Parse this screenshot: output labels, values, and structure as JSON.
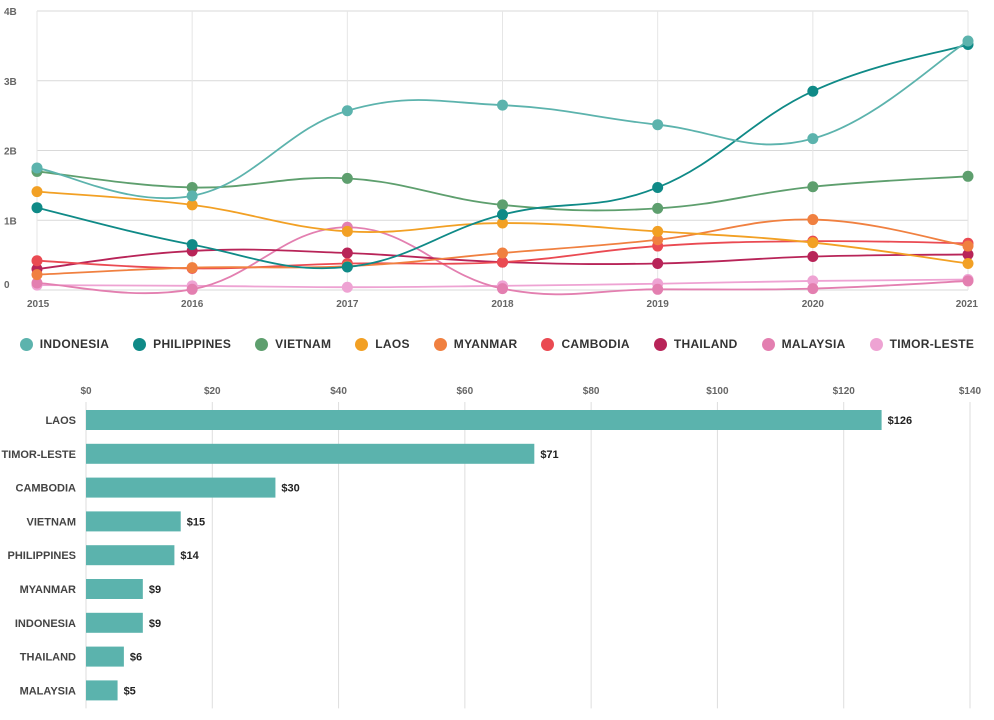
{
  "chart_data": [
    {
      "type": "line",
      "title": "",
      "xlabel": "",
      "ylabel": "",
      "x": [
        "2015",
        "2016",
        "2017",
        "2018",
        "2019",
        "2020",
        "2021"
      ],
      "ylim": [
        0,
        4
      ],
      "yticks": [
        0,
        1,
        2,
        3,
        4
      ],
      "ytick_labels": [
        "0",
        "1B",
        "2B",
        "3B",
        "4B"
      ],
      "grid": true,
      "legend_position": "bottom",
      "series": [
        {
          "name": "INDONESIA",
          "color": "#5cb3ad",
          "values": [
            1.75,
            1.35,
            2.57,
            2.65,
            2.37,
            2.17,
            3.57
          ]
        },
        {
          "name": "PHILIPPINES",
          "color": "#0f8a87",
          "values": [
            1.18,
            0.65,
            0.33,
            1.08,
            1.47,
            2.85,
            3.52
          ]
        },
        {
          "name": "VIETNAM",
          "color": "#5e9f6e",
          "values": [
            1.7,
            1.47,
            1.6,
            1.22,
            1.17,
            1.48,
            1.63
          ]
        },
        {
          "name": "LAOS",
          "color": "#f2a024",
          "values": [
            1.41,
            1.22,
            0.84,
            0.96,
            0.84,
            0.68,
            0.38
          ]
        },
        {
          "name": "MYANMAR",
          "color": "#f08040",
          "values": [
            0.22,
            0.32,
            0.34,
            0.53,
            0.72,
            1.01,
            0.63
          ]
        },
        {
          "name": "CAMBODIA",
          "color": "#ea4a52",
          "values": [
            0.42,
            0.31,
            0.38,
            0.4,
            0.63,
            0.7,
            0.67
          ]
        },
        {
          "name": "THAILAND",
          "color": "#b82458",
          "values": [
            0.3,
            0.56,
            0.53,
            0.4,
            0.38,
            0.48,
            0.51
          ]
        },
        {
          "name": "MALAYSIA",
          "color": "#e37fb0",
          "values": [
            0.1,
            0.01,
            0.9,
            0.02,
            0.01,
            0.02,
            0.13
          ]
        },
        {
          "name": "TIMOR-LESTE",
          "color": "#eea3d3",
          "values": [
            0.07,
            0.06,
            0.04,
            0.06,
            0.09,
            0.13,
            0.15
          ]
        }
      ]
    },
    {
      "type": "bar",
      "orientation": "horizontal",
      "title": "",
      "xlabel": "",
      "ylabel": "",
      "xlim": [
        0,
        140
      ],
      "xticks": [
        0,
        20,
        40,
        60,
        80,
        100,
        120,
        140
      ],
      "xtick_labels": [
        "$0",
        "$20",
        "$40",
        "$60",
        "$80",
        "$100",
        "$120",
        "$140"
      ],
      "bar_color": "#5bb3ad",
      "grid": true,
      "categories": [
        "LAOS",
        "TIMOR-LESTE",
        "CAMBODIA",
        "VIETNAM",
        "PHILIPPINES",
        "MYANMAR",
        "INDONESIA",
        "THAILAND",
        "MALAYSIA"
      ],
      "values": [
        126,
        71,
        30,
        15,
        14,
        9,
        9,
        6,
        5
      ],
      "value_labels": [
        "$126",
        "$71",
        "$30",
        "$15",
        "$14",
        "$9",
        "$9",
        "$6",
        "$5"
      ]
    }
  ]
}
